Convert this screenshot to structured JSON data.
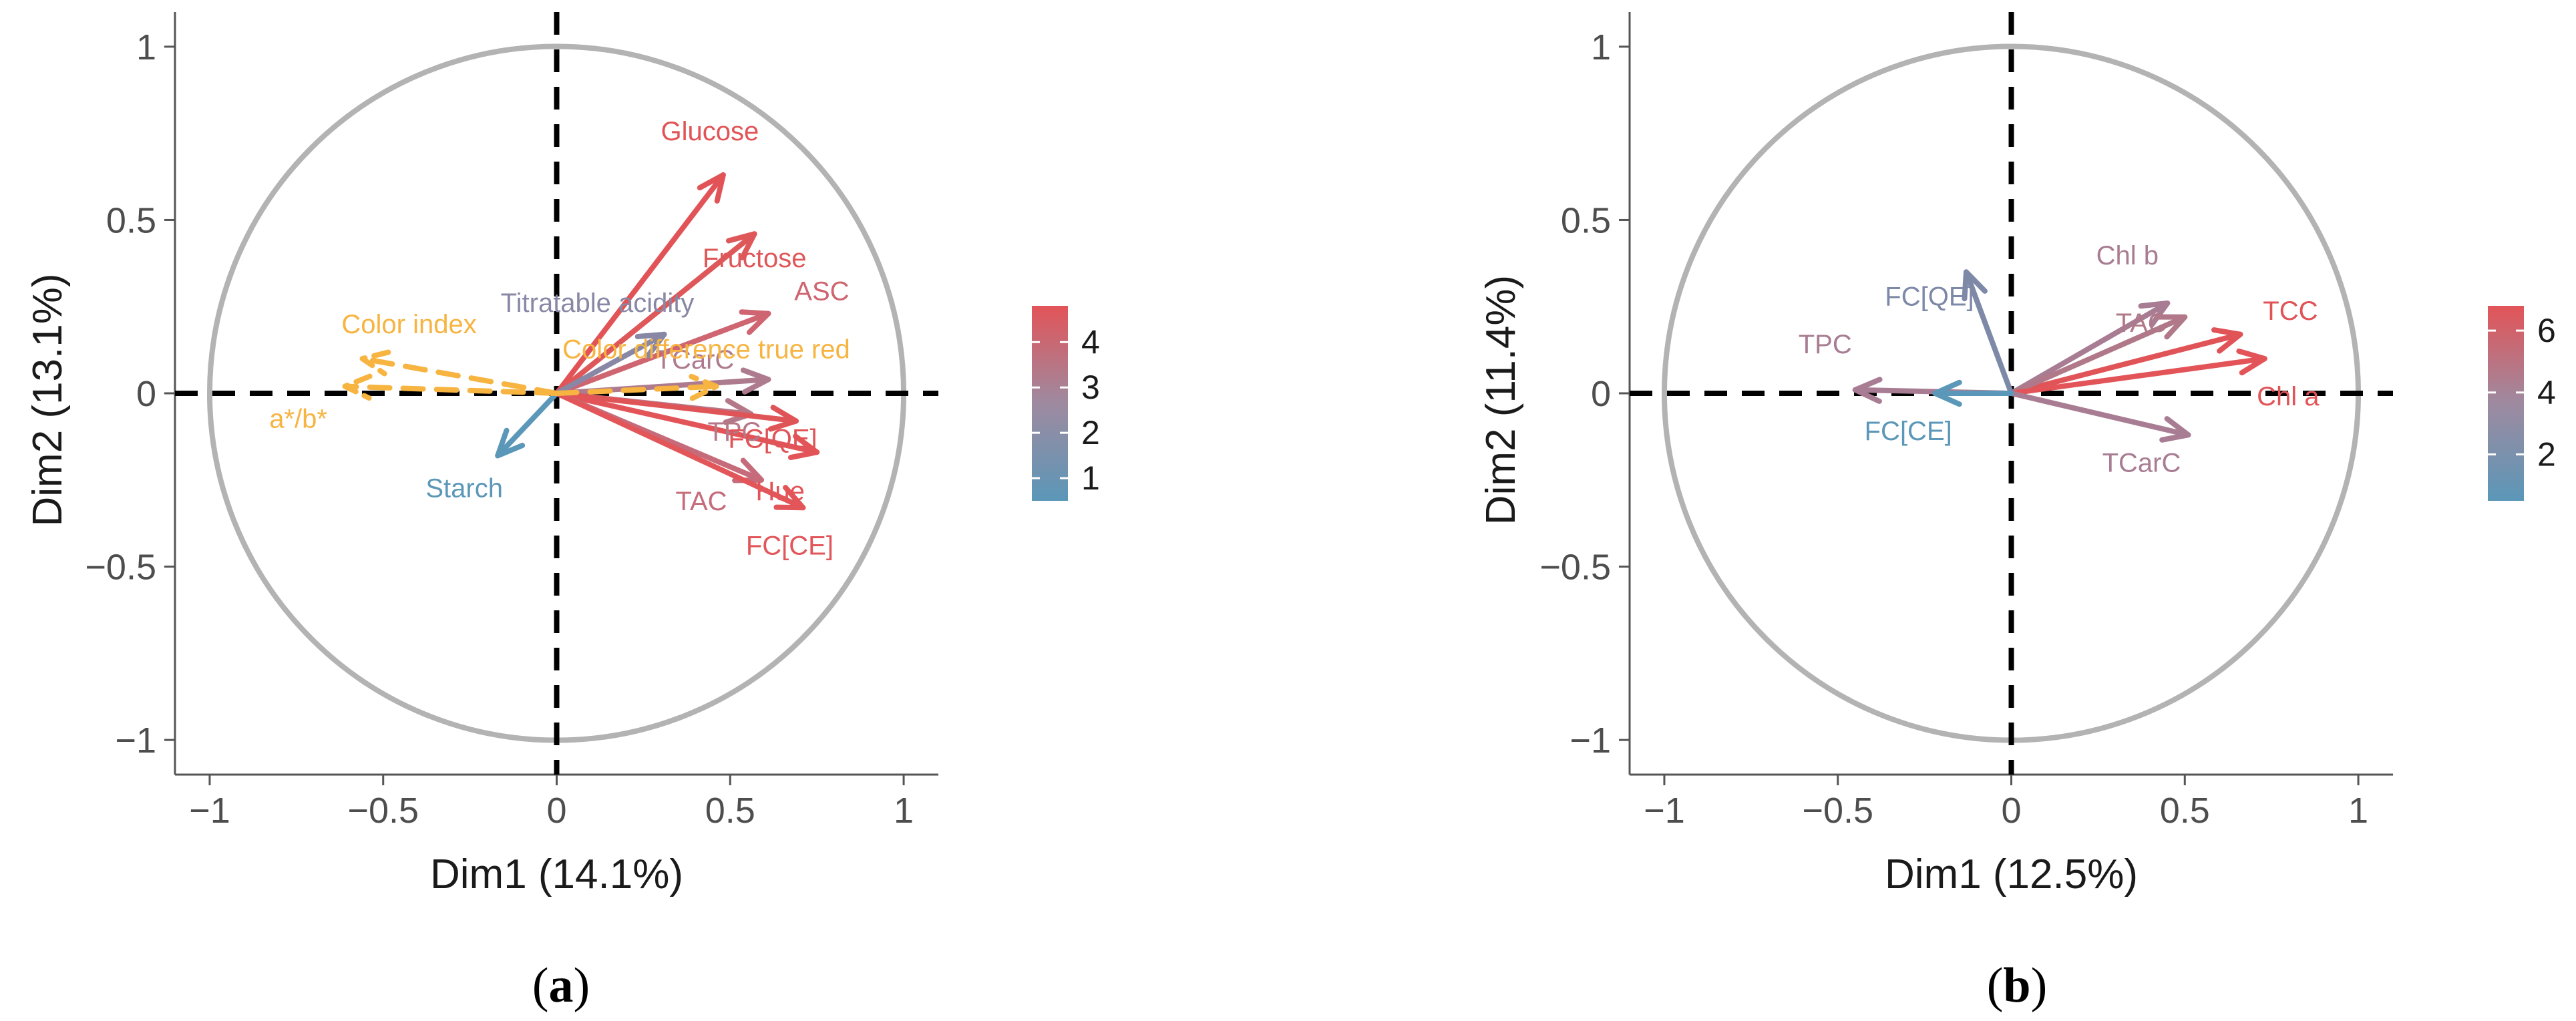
{
  "chart_data": [
    {
      "panel": "a",
      "type": "scatter",
      "subtype": "pca-variable-correlation-circle",
      "xlabel": "Dim1 (14.1%)",
      "ylabel": "Dim2 (13.1%)",
      "xlim": [
        -1.1,
        1.1
      ],
      "ylim": [
        -1.1,
        1.1
      ],
      "xticks": [
        "−1",
        "−0.5",
        "0",
        "0.5",
        "1"
      ],
      "yticks": [
        "−1",
        "−0.5",
        "0",
        "0.5",
        "1"
      ],
      "legend": {
        "type": "gradient",
        "placement": "right",
        "range": [
          0.5,
          4.8
        ],
        "ticks": [
          "1",
          "2",
          "3",
          "4"
        ],
        "colors": [
          "#5b97b8",
          "#9e8aa0",
          "#e25458"
        ]
      },
      "variables": [
        {
          "name": "Glucose",
          "x": 0.48,
          "y": 0.63,
          "color": "#e15356",
          "dashed": false
        },
        {
          "name": "Fructose",
          "x": 0.57,
          "y": 0.46,
          "color": "#de5759",
          "dashed": false
        },
        {
          "name": "ASC",
          "x": 0.61,
          "y": 0.23,
          "color": "#cf6571",
          "dashed": false
        },
        {
          "name": "Titratable acidity",
          "x": 0.31,
          "y": 0.17,
          "color": "#8888a6",
          "dashed": false
        },
        {
          "name": "TCarC",
          "x": 0.61,
          "y": 0.04,
          "color": "#ae7a8e",
          "dashed": false
        },
        {
          "name": "TPC",
          "x": 0.56,
          "y": -0.06,
          "color": "#b57888",
          "dashed": false
        },
        {
          "name": "FC[QE]",
          "x": 0.69,
          "y": -0.08,
          "color": "#df5457",
          "dashed": false
        },
        {
          "name": "Hue",
          "x": 0.75,
          "y": -0.17,
          "color": "#e25458",
          "dashed": false
        },
        {
          "name": "TAC",
          "x": 0.59,
          "y": -0.25,
          "color": "#c56b7a",
          "dashed": false
        },
        {
          "name": "FC[CE]",
          "x": 0.71,
          "y": -0.33,
          "color": "#e2565a",
          "dashed": false
        },
        {
          "name": "Starch",
          "x": -0.17,
          "y": -0.18,
          "color": "#5b97b8",
          "dashed": false
        },
        {
          "name": "Color index",
          "x": -0.56,
          "y": 0.1,
          "color": "#f7b441",
          "dashed": true
        },
        {
          "name": "a*/b*",
          "x": -0.61,
          "y": 0.02,
          "color": "#f7b441",
          "dashed": true
        },
        {
          "name": "Color difference true red",
          "x": 0.46,
          "y": 0.02,
          "color": "#f7b441",
          "dashed": true
        }
      ],
      "labels": {
        "Glucose": "Glucose",
        "Fructose": "Fructose",
        "ASC": "ASC",
        "Titratable acidity": "Titratable acidity",
        "TCarC": "TCarC",
        "TPC": "TPC",
        "FC[QE]": "FC[QE]",
        "Hue": "Hue",
        "TAC": "TAC",
        "FC[CE]": "FC[CE]",
        "Starch": "Starch",
        "Color index": "Color index",
        "a*/b*": "a*/b*",
        "Color difference true red": "Color difference true red"
      },
      "panel_label": "(a)"
    },
    {
      "panel": "b",
      "type": "scatter",
      "subtype": "pca-variable-correlation-circle",
      "xlabel": "Dim1 (12.5%)",
      "ylabel": "Dim2 (11.4%)",
      "xlim": [
        -1.1,
        1.1
      ],
      "ylim": [
        -1.1,
        1.1
      ],
      "xticks": [
        "−1",
        "−0.5",
        "0",
        "0.5",
        "1"
      ],
      "yticks": [
        "−1",
        "−0.5",
        "0",
        "0.5",
        "1"
      ],
      "legend": {
        "type": "gradient",
        "placement": "right",
        "range": [
          0.5,
          6.8
        ],
        "ticks": [
          "2",
          "4",
          "6"
        ],
        "colors": [
          "#5b97b8",
          "#9e8aa0",
          "#e25458"
        ]
      },
      "variables": [
        {
          "name": "Chl b",
          "x": 0.45,
          "y": 0.26,
          "color": "#a87c92",
          "dashed": false
        },
        {
          "name": "TCC",
          "x": 0.66,
          "y": 0.17,
          "color": "#e05458",
          "dashed": false
        },
        {
          "name": "TAC",
          "x": 0.5,
          "y": 0.22,
          "color": "#b07888",
          "dashed": false
        },
        {
          "name": "Chl a",
          "x": 0.73,
          "y": 0.1,
          "color": "#e25458",
          "dashed": false
        },
        {
          "name": "TCarC",
          "x": 0.51,
          "y": -0.12,
          "color": "#a87c92",
          "dashed": false
        },
        {
          "name": "FC[QE]",
          "x": -0.13,
          "y": 0.35,
          "color": "#7e89a8",
          "dashed": false
        },
        {
          "name": "TPC",
          "x": -0.45,
          "y": 0.01,
          "color": "#a87c92",
          "dashed": false
        },
        {
          "name": "FC[CE]",
          "x": -0.22,
          "y": 0.0,
          "color": "#5b97b8",
          "dashed": false
        }
      ],
      "labels": {
        "Chl b": "Chl b",
        "TCC": "TCC",
        "TAC": "TAC",
        "Chl a": "Chl a",
        "TCarC": "TCarC",
        "FC[QE]": "FC[QE]",
        "TPC": "TPC",
        "FC[CE]": "FC[CE]"
      },
      "panel_label": "(b)"
    }
  ]
}
